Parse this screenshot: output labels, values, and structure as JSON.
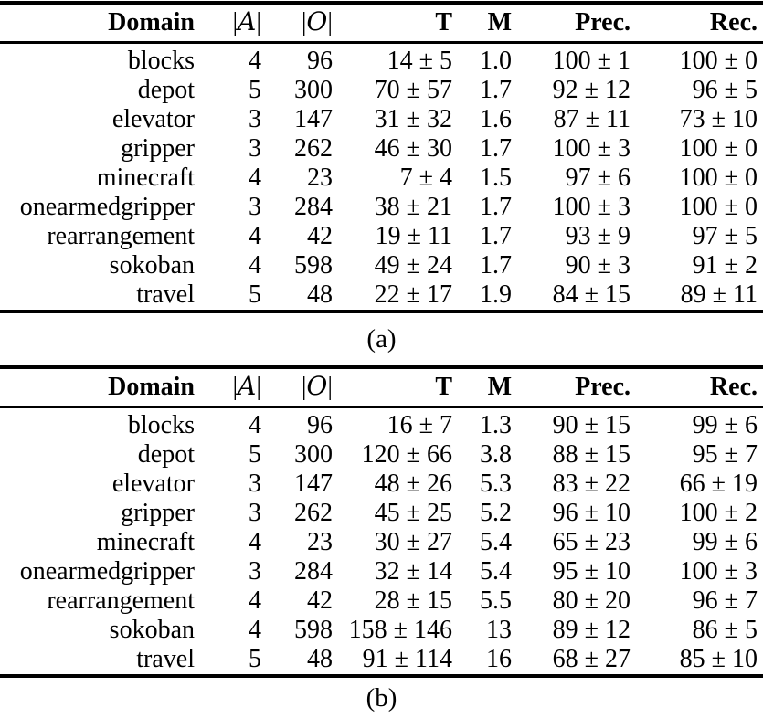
{
  "page": {
    "background": "#ffffff",
    "text_color": "#000000"
  },
  "tables": [
    {
      "caption": "(a)",
      "headers": {
        "domain": "Domain",
        "actions_open": "|",
        "actions_letter": "A",
        "actions_close": "|",
        "objects_open": "|",
        "objects_letter": "O",
        "objects_close": "|",
        "t": "T",
        "m": "M",
        "prec": "Prec.",
        "rec": "Rec."
      },
      "rows": [
        {
          "domain": "blocks",
          "a": "4",
          "o": "96",
          "t": "14 ± 5",
          "m": "1.0",
          "prec": "100 ± 1",
          "rec": "100 ± 0"
        },
        {
          "domain": "depot",
          "a": "5",
          "o": "300",
          "t": "70 ± 57",
          "m": "1.7",
          "prec": "92 ± 12",
          "rec": "96 ± 5"
        },
        {
          "domain": "elevator",
          "a": "3",
          "o": "147",
          "t": "31 ± 32",
          "m": "1.6",
          "prec": "87 ± 11",
          "rec": "73 ± 10"
        },
        {
          "domain": "gripper",
          "a": "3",
          "o": "262",
          "t": "46 ± 30",
          "m": "1.7",
          "prec": "100 ± 3",
          "rec": "100 ± 0"
        },
        {
          "domain": "minecraft",
          "a": "4",
          "o": "23",
          "t": "7 ± 4",
          "m": "1.5",
          "prec": "97 ± 6",
          "rec": "100 ± 0"
        },
        {
          "domain": "onearmedgripper",
          "a": "3",
          "o": "284",
          "t": "38 ± 21",
          "m": "1.7",
          "prec": "100 ± 3",
          "rec": "100 ± 0"
        },
        {
          "domain": "rearrangement",
          "a": "4",
          "o": "42",
          "t": "19 ± 11",
          "m": "1.7",
          "prec": "93 ± 9",
          "rec": "97 ± 5"
        },
        {
          "domain": "sokoban",
          "a": "4",
          "o": "598",
          "t": "49 ± 24",
          "m": "1.7",
          "prec": "90 ± 3",
          "rec": "91 ± 2"
        },
        {
          "domain": "travel",
          "a": "5",
          "o": "48",
          "t": "22 ± 17",
          "m": "1.9",
          "prec": "84 ± 15",
          "rec": "89 ± 11"
        }
      ]
    },
    {
      "caption": "(b)",
      "headers": {
        "domain": "Domain",
        "actions_open": "|",
        "actions_letter": "A",
        "actions_close": "|",
        "objects_open": "|",
        "objects_letter": "O",
        "objects_close": "|",
        "t": "T",
        "m": "M",
        "prec": "Prec.",
        "rec": "Rec."
      },
      "rows": [
        {
          "domain": "blocks",
          "a": "4",
          "o": "96",
          "t": "16 ± 7",
          "m": "1.3",
          "prec": "90 ± 15",
          "rec": "99 ± 6"
        },
        {
          "domain": "depot",
          "a": "5",
          "o": "300",
          "t": "120 ± 66",
          "m": "3.8",
          "prec": "88 ± 15",
          "rec": "95 ± 7"
        },
        {
          "domain": "elevator",
          "a": "3",
          "o": "147",
          "t": "48 ± 26",
          "m": "5.3",
          "prec": "83 ± 22",
          "rec": "66 ± 19"
        },
        {
          "domain": "gripper",
          "a": "3",
          "o": "262",
          "t": "45 ± 25",
          "m": "5.2",
          "prec": "96 ± 10",
          "rec": "100 ± 2"
        },
        {
          "domain": "minecraft",
          "a": "4",
          "o": "23",
          "t": "30 ± 27",
          "m": "5.4",
          "prec": "65 ± 23",
          "rec": "99 ± 6"
        },
        {
          "domain": "onearmedgripper",
          "a": "3",
          "o": "284",
          "t": "32 ± 14",
          "m": "5.4",
          "prec": "95 ± 10",
          "rec": "100 ± 3"
        },
        {
          "domain": "rearrangement",
          "a": "4",
          "o": "42",
          "t": "28 ± 15",
          "m": "5.5",
          "prec": "80 ± 20",
          "rec": "96 ± 7"
        },
        {
          "domain": "sokoban",
          "a": "4",
          "o": "598",
          "t": "158 ± 146",
          "m": "13",
          "prec": "89 ± 12",
          "rec": "86 ± 5"
        },
        {
          "domain": "travel",
          "a": "5",
          "o": "48",
          "t": "91 ± 114",
          "m": "16",
          "prec": "68 ± 27",
          "rec": "85 ± 10"
        }
      ]
    }
  ]
}
